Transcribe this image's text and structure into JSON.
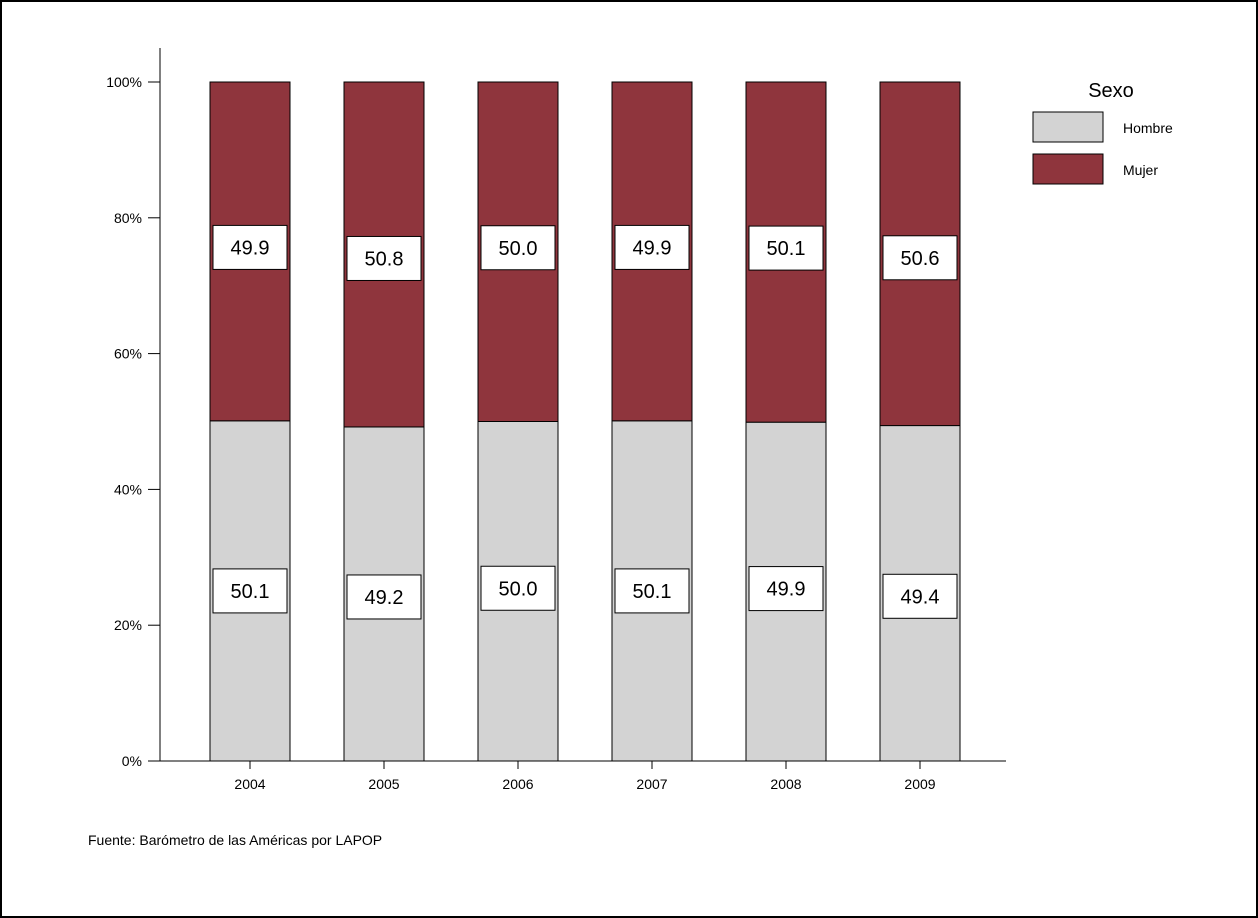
{
  "chart_data": {
    "type": "bar",
    "stacked": true,
    "percent": true,
    "categories": [
      "2004",
      "2005",
      "2006",
      "2007",
      "2008",
      "2009"
    ],
    "series": [
      {
        "name": "Hombre",
        "color": "#d3d3d3",
        "values": [
          50.1,
          49.2,
          50.0,
          50.1,
          49.9,
          49.4
        ]
      },
      {
        "name": "Mujer",
        "color": "#8f353d",
        "values": [
          49.9,
          50.8,
          50.0,
          49.9,
          50.1,
          50.6
        ]
      }
    ],
    "data_labels": {
      "Hombre": [
        "50.1",
        "49.2",
        "50.0",
        "50.1",
        "49.9",
        "49.4"
      ],
      "Mujer": [
        "49.9",
        "50.8",
        "50.0",
        "49.9",
        "50.1",
        "50.6"
      ]
    },
    "ylim": [
      0,
      100
    ],
    "yticks": [
      0,
      20,
      40,
      60,
      80,
      100
    ],
    "ytick_labels": [
      "0%",
      "20%",
      "40%",
      "60%",
      "80%",
      "100%"
    ],
    "xlabel": "",
    "ylabel": "",
    "legend": {
      "title": "Sexo",
      "placement": "top-right",
      "entries": [
        "Hombre",
        "Mujer"
      ]
    },
    "grid": false
  },
  "source_note": "Fuente: Barómetro de las Américas por LAPOP"
}
